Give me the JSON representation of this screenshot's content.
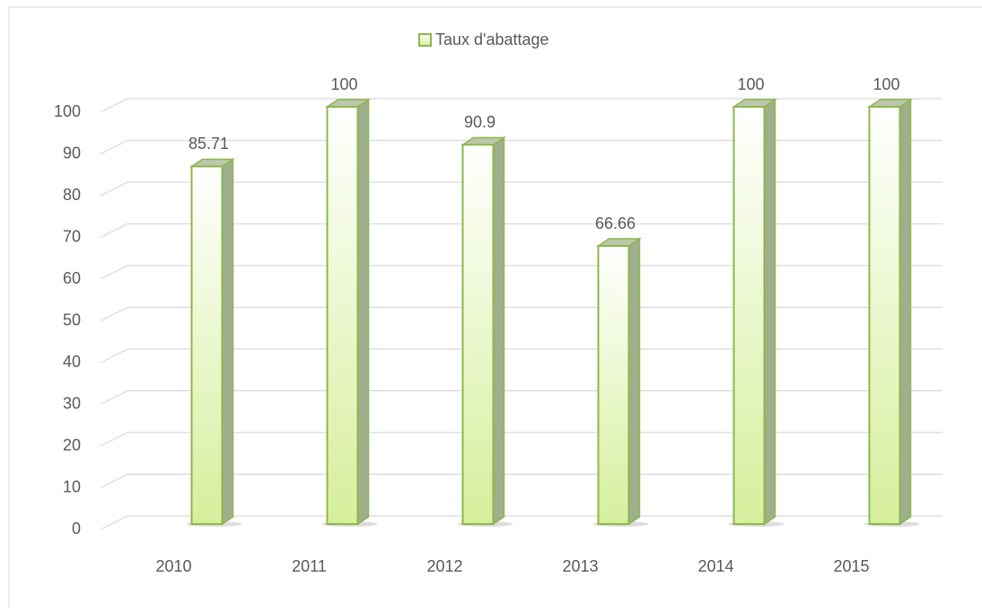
{
  "chart_data": {
    "type": "bar3d",
    "legend": "Taux d'abattage",
    "series": [
      {
        "name": "Taux d'abattage",
        "color": "#e4f5c0",
        "edge": "#8cb84a",
        "values": [
          85.71,
          100,
          90.9,
          66.66,
          100,
          100
        ]
      }
    ],
    "categories": [
      "2010",
      "2011",
      "2012",
      "2013",
      "2014",
      "2015"
    ],
    "ylim": [
      0,
      100
    ],
    "yticks": [
      0,
      10,
      20,
      30,
      40,
      50,
      60,
      70,
      80,
      90,
      100
    ],
    "grid": true,
    "legend_position": "top"
  }
}
